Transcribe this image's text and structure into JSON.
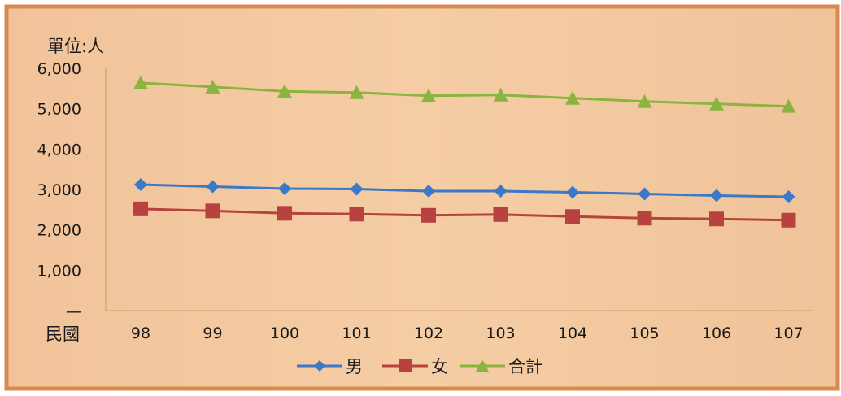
{
  "chart_data": {
    "type": "line",
    "unit_label": "單位:人",
    "x_axis_label": "民國",
    "categories": [
      "98",
      "99",
      "100",
      "101",
      "102",
      "103",
      "104",
      "105",
      "106",
      "107"
    ],
    "ylim": [
      0,
      6000
    ],
    "y_ticks": [
      "—",
      "1,000",
      "2,000",
      "3,000",
      "4,000",
      "5,000",
      "6,000"
    ],
    "grid": false,
    "legend_position": "bottom",
    "series": [
      {
        "name": "男",
        "color": "#3a78c8",
        "marker": "diamond",
        "values": [
          3120,
          3070,
          3020,
          3010,
          2960,
          2960,
          2930,
          2890,
          2850,
          2820
        ]
      },
      {
        "name": "女",
        "color": "#b8423f",
        "marker": "square",
        "values": [
          2520,
          2470,
          2410,
          2390,
          2360,
          2380,
          2330,
          2290,
          2270,
          2240
        ]
      },
      {
        "name": "合計",
        "color": "#8ab33f",
        "marker": "triangle",
        "values": [
          5640,
          5540,
          5430,
          5400,
          5320,
          5340,
          5260,
          5180,
          5120,
          5060
        ]
      }
    ]
  }
}
